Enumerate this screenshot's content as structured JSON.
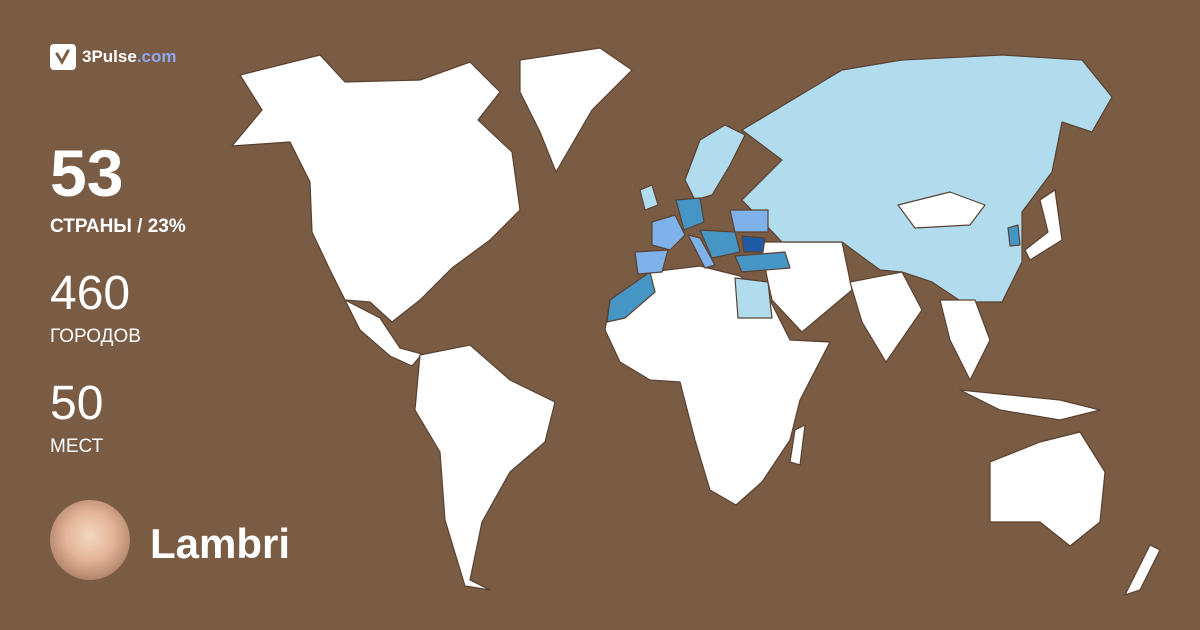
{
  "brand": {
    "name": "3Pulse",
    "domain": ".com"
  },
  "stats": {
    "countries_value": "53",
    "countries_label": "СТРАНЫ / 23%",
    "cities_value": "460",
    "cities_label": "ГОРОДОВ",
    "places_value": "50",
    "places_label": "МЕСТ"
  },
  "user": {
    "name": "Lambri"
  },
  "colors": {
    "background": "#7a5b44",
    "unvisited": "#ffffff",
    "light": "#b0dcee",
    "medium": "#7fb2ea",
    "teal": "#4596c5",
    "dark": "#1f5aa6",
    "brand_accent": "#8ea9ee"
  }
}
